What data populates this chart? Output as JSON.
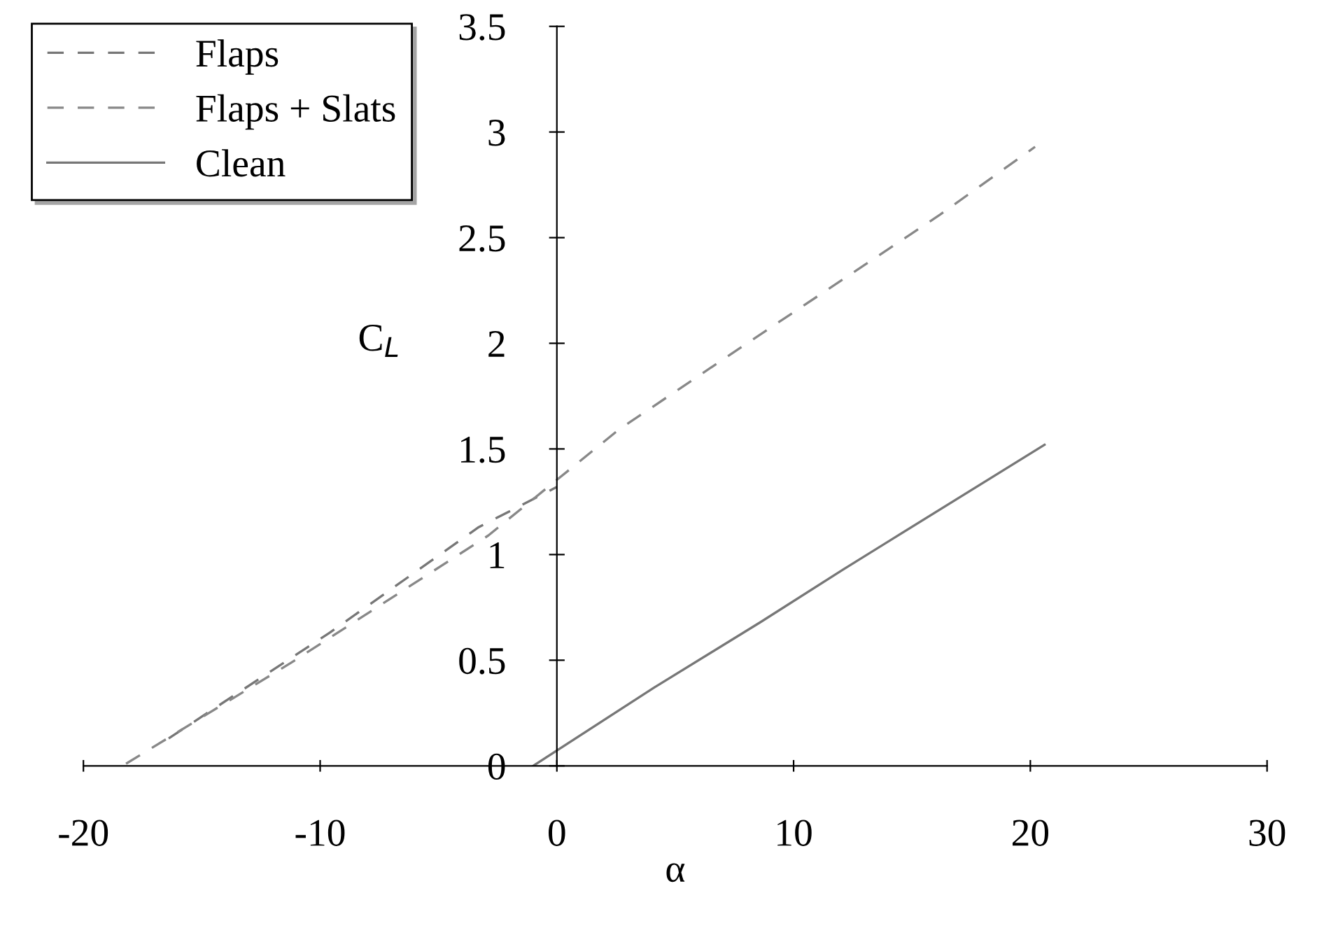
{
  "chart_data": {
    "type": "line",
    "xlabel": "α",
    "ylabel": "C$_{L}$",
    "xlim": [
      -20,
      30
    ],
    "xticks": [
      -20,
      -10,
      0,
      10,
      20,
      30
    ],
    "ylim": [
      0,
      3.5
    ],
    "yticks": [
      0,
      0.5,
      1,
      1.5,
      2,
      2.5,
      3,
      3.5
    ],
    "grid": false,
    "legend": "top left",
    "marker": "none",
    "series": [
      {
        "name": "Flaps",
        "color": "#777777",
        "line_style": "dashed",
        "x": [
          -16.4,
          -9.6,
          -3.3,
          0
        ],
        "values": [
          0.13,
          0.63,
          1.13,
          1.32
        ]
      },
      {
        "name": "Flaps + Slats",
        "color": "#888888",
        "line_style": "dashed",
        "x": [
          -18.2,
          -11.2,
          -2.9,
          2.6,
          7.9,
          16.2,
          20.2
        ],
        "values": [
          0.01,
          0.49,
          1.09,
          1.59,
          1.99,
          2.61,
          2.93
        ]
      },
      {
        "name": "Clean",
        "color": "#777777",
        "line_style": "solid",
        "x": [
          -1,
          4.1,
          8.6,
          12.1,
          20.6
        ],
        "values": [
          0,
          0.37,
          0.68,
          0.93,
          1.52
        ]
      }
    ]
  }
}
